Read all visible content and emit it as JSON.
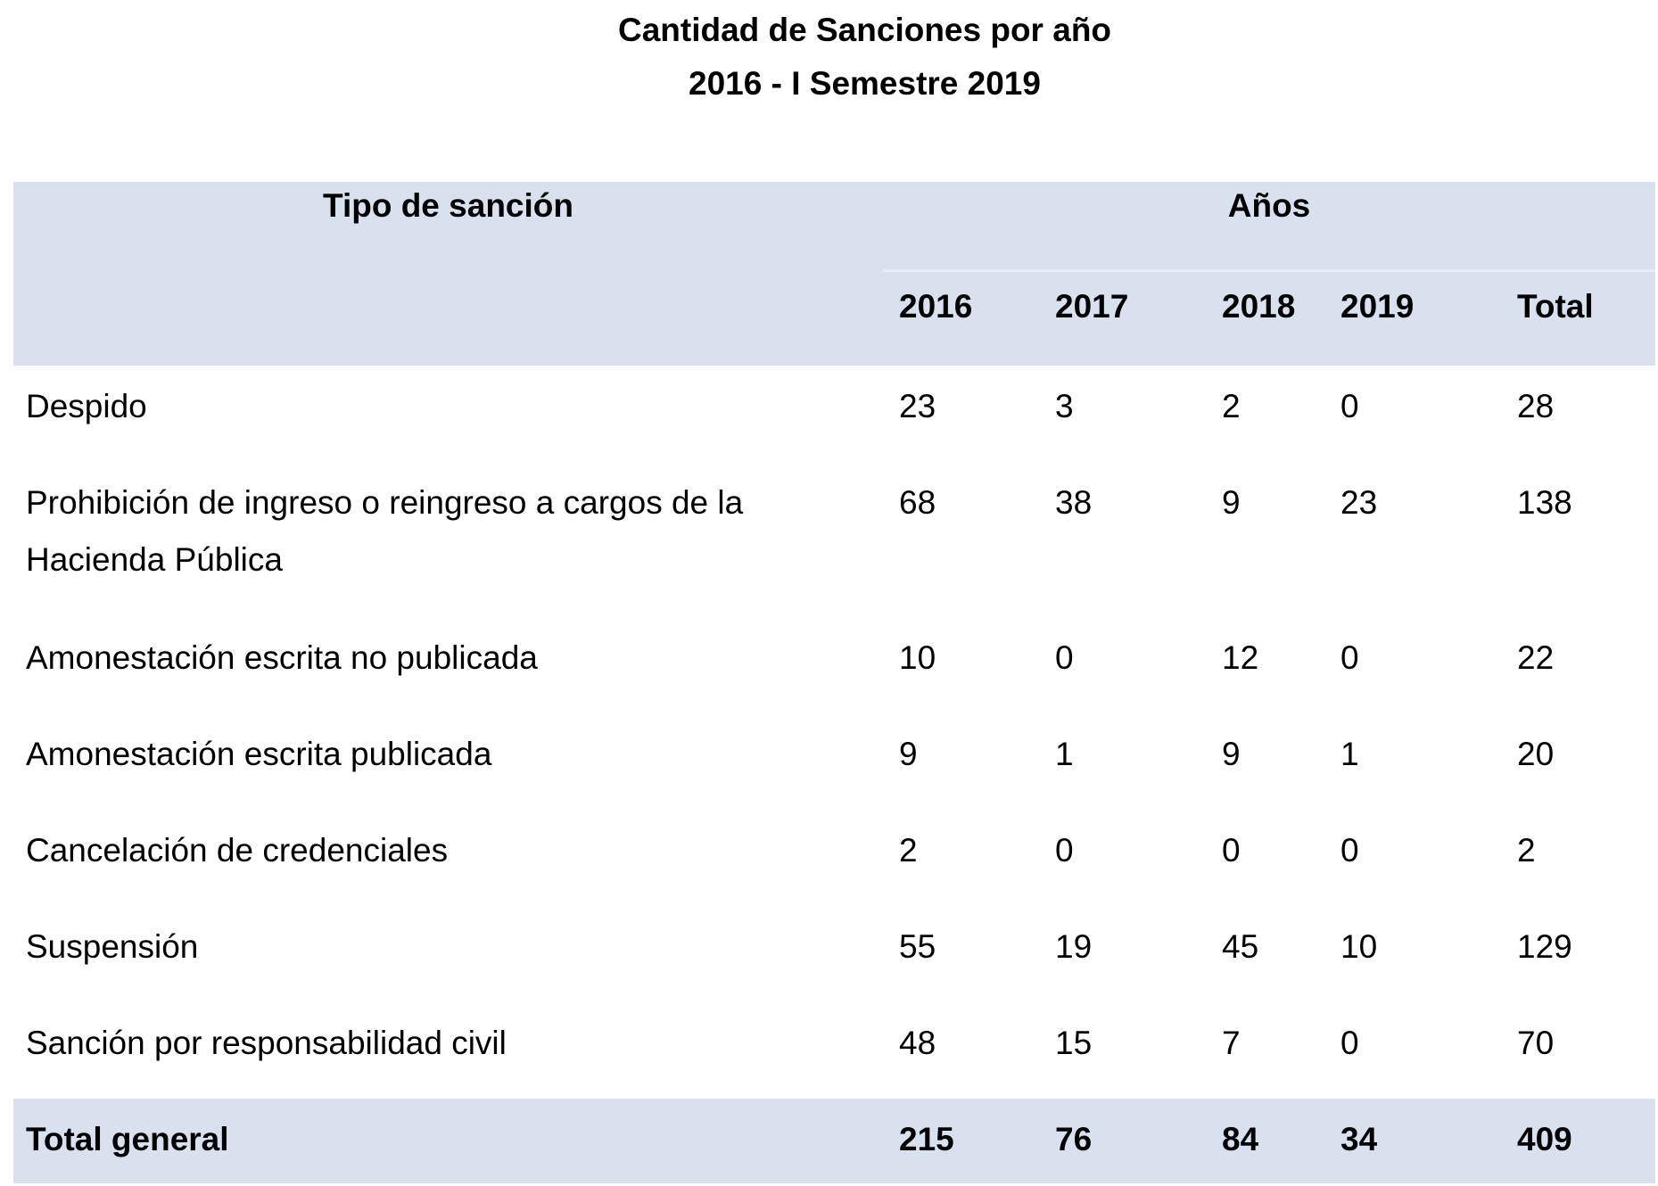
{
  "title": {
    "line1": "Cantidad de Sanciones por año",
    "line2": "2016 - I Semestre 2019"
  },
  "table": {
    "header": {
      "type_col_label": "Tipo de sanción",
      "years_group_label": "Años",
      "year_2016": "2016",
      "year_2017": "2017",
      "year_2018": "2018",
      "year_2019": "2019",
      "total_col_label": "Total"
    },
    "rows": [
      {
        "label": "Despido",
        "v2016": "23",
        "v2017": "3",
        "v2018": "2",
        "v2019": "0",
        "total": "28"
      },
      {
        "label": "Prohibición de ingreso o reingreso a cargos de la Hacienda Pública",
        "v2016": "68",
        "v2017": "38",
        "v2018": "9",
        "v2019": "23",
        "total": "138"
      },
      {
        "label": "Amonestación escrita no publicada",
        "v2016": "10",
        "v2017": "0",
        "v2018": "12",
        "v2019": "0",
        "total": "22"
      },
      {
        "label": "Amonestación escrita publicada",
        "v2016": "9",
        "v2017": "1",
        "v2018": "9",
        "v2019": "1",
        "total": "20"
      },
      {
        "label": "Cancelación de credenciales",
        "v2016": "2",
        "v2017": "0",
        "v2018": "0",
        "v2019": "0",
        "total": "2"
      },
      {
        "label": "Suspensión",
        "v2016": "55",
        "v2017": "19",
        "v2018": "45",
        "v2019": "10",
        "total": "129"
      },
      {
        "label": "Sanción por responsabilidad civil",
        "v2016": "48",
        "v2017": "15",
        "v2018": "7",
        "v2019": "0",
        "total": "70"
      }
    ],
    "total_row": {
      "label": "Total general",
      "v2016": "215",
      "v2017": "76",
      "v2018": "84",
      "v2019": "34",
      "total": "409"
    }
  },
  "colors": {
    "header_bg": "#dae1ee",
    "total_row_bg": "#dae1ee",
    "divider_line": "#e7ecf5",
    "text": "#000000",
    "page_bg": "#ffffff"
  },
  "chart_data": {
    "type": "table",
    "title": "Cantidad de Sanciones por año 2016 - I Semestre 2019",
    "columns": [
      "Tipo de sanción",
      "2016",
      "2017",
      "2018",
      "2019",
      "Total"
    ],
    "rows": [
      [
        "Despido",
        23,
        3,
        2,
        0,
        28
      ],
      [
        "Prohibición de ingreso o reingreso a cargos de la Hacienda Pública",
        68,
        38,
        9,
        23,
        138
      ],
      [
        "Amonestación escrita no publicada",
        10,
        0,
        12,
        0,
        22
      ],
      [
        "Amonestación escrita publicada",
        9,
        1,
        9,
        1,
        20
      ],
      [
        "Cancelación de credenciales",
        2,
        0,
        0,
        0,
        2
      ],
      [
        "Suspensión",
        55,
        19,
        45,
        10,
        129
      ],
      [
        "Sanción por responsabilidad civil",
        48,
        15,
        7,
        0,
        70
      ],
      [
        "Total general",
        215,
        76,
        84,
        34,
        409
      ]
    ]
  }
}
